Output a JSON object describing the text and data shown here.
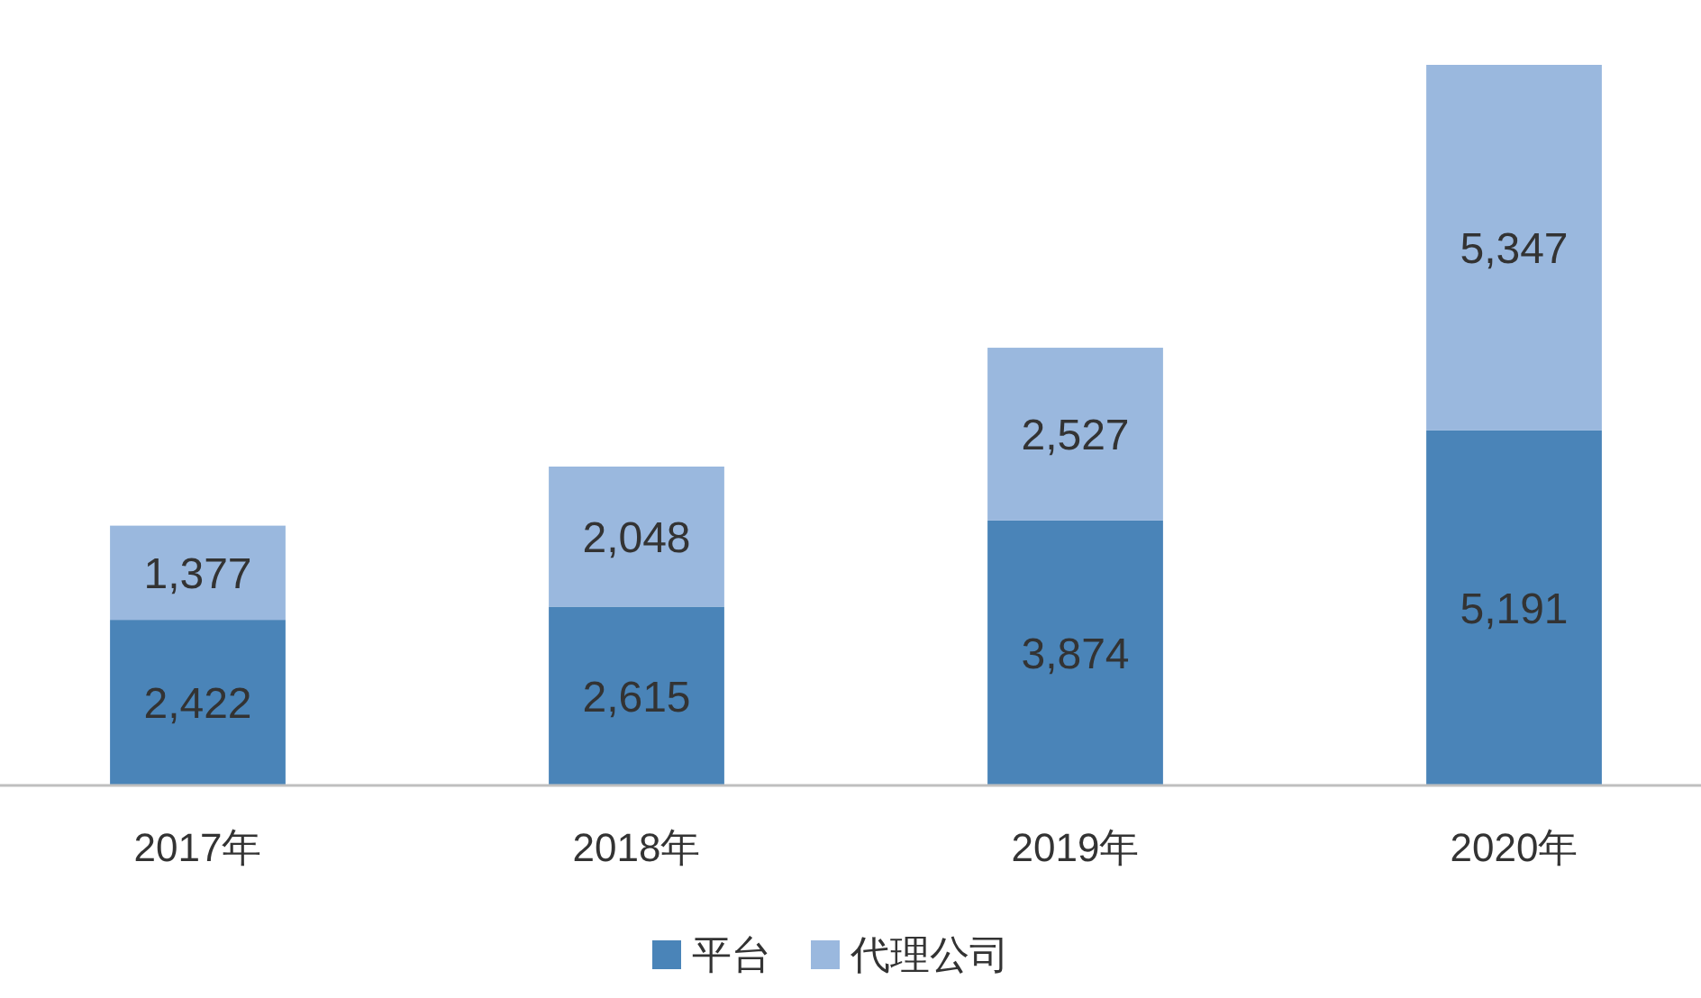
{
  "chart_data": {
    "type": "bar",
    "stacked": true,
    "legend": "bottom",
    "categories": [
      "2017年",
      "2018年",
      "2019年",
      "2020年"
    ],
    "series": [
      {
        "name": "平台",
        "color": "#4a84b8",
        "values": [
          2422,
          2615,
          3874,
          5191
        ],
        "value_labels": [
          "2,422",
          "2,615",
          "3,874",
          "5,191"
        ]
      },
      {
        "name": "代理公司",
        "color": "#9ab8de",
        "values": [
          1377,
          2048,
          2527,
          5347
        ],
        "value_labels": [
          "1,377",
          "2,048",
          "2,527",
          "5,347"
        ]
      }
    ]
  }
}
